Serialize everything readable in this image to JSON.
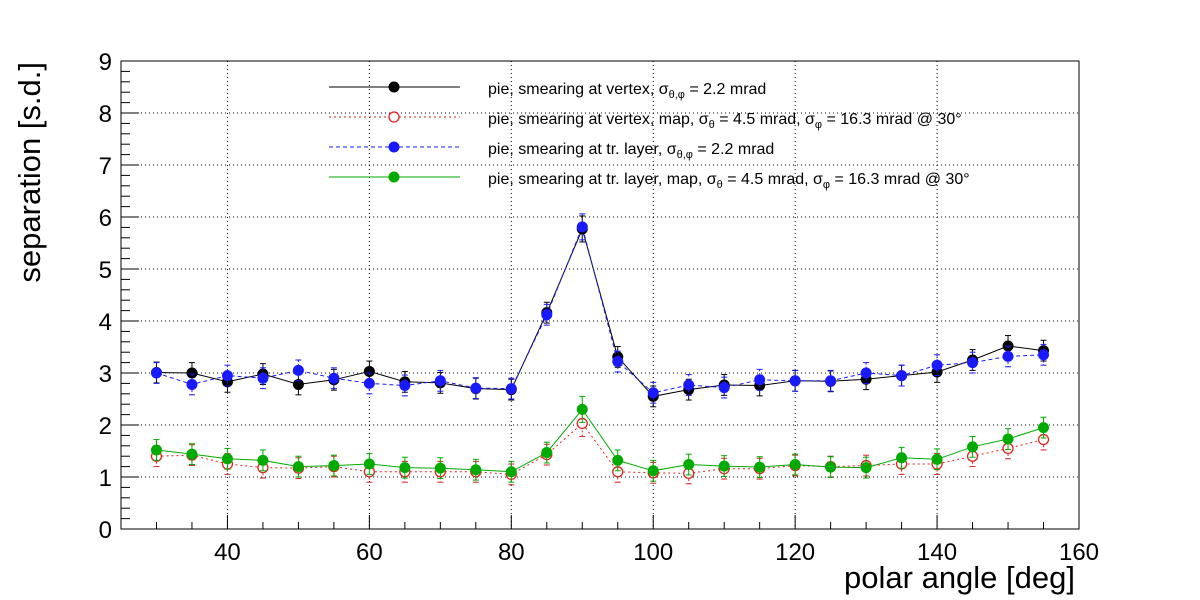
{
  "chart_data": {
    "type": "scatter",
    "xlabel": "polar angle [deg]",
    "ylabel": "separation [s.d.]",
    "xlim": [
      25,
      160
    ],
    "ylim": [
      0,
      9
    ],
    "x_ticks": [
      40,
      60,
      80,
      100,
      120,
      140,
      160
    ],
    "y_ticks": [
      0,
      1,
      2,
      3,
      4,
      5,
      6,
      7,
      8,
      9
    ],
    "grid": true,
    "legend_position": "top",
    "x": [
      30,
      35,
      40,
      45,
      50,
      55,
      60,
      65,
      70,
      75,
      80,
      85,
      90,
      95,
      100,
      105,
      110,
      115,
      120,
      125,
      130,
      135,
      140,
      145,
      150,
      155
    ],
    "series": [
      {
        "name": "pie, smearing at vertex, σ_θ,φ = 2.2 mrad",
        "color": "#000000",
        "line": "solid",
        "marker": "filled",
        "values": [
          3.01,
          3.0,
          2.83,
          2.98,
          2.78,
          2.87,
          3.03,
          2.83,
          2.81,
          2.7,
          2.68,
          4.16,
          5.77,
          3.31,
          2.55,
          2.68,
          2.77,
          2.76,
          2.85,
          2.84,
          2.88,
          2.95,
          3.02,
          3.25,
          3.52,
          3.43
        ],
        "errors": [
          0.2,
          0.2,
          0.2,
          0.2,
          0.2,
          0.2,
          0.2,
          0.2,
          0.2,
          0.2,
          0.2,
          0.2,
          0.25,
          0.2,
          0.2,
          0.2,
          0.2,
          0.2,
          0.2,
          0.2,
          0.2,
          0.2,
          0.2,
          0.2,
          0.2,
          0.2
        ]
      },
      {
        "name": "pie, smearing at vertex, map, σ_θ = 4.5 mrad,  σ_φ = 16.3 mrad @ 30°",
        "color": "#dd2222",
        "line": "dotted",
        "marker": "open",
        "values": [
          1.4,
          1.42,
          1.25,
          1.18,
          1.17,
          1.2,
          1.1,
          1.1,
          1.1,
          1.1,
          1.05,
          1.43,
          2.03,
          1.1,
          1.08,
          1.07,
          1.16,
          1.16,
          1.22,
          1.2,
          1.22,
          1.25,
          1.25,
          1.4,
          1.55,
          1.72
        ],
        "errors": [
          0.2,
          0.2,
          0.2,
          0.2,
          0.2,
          0.2,
          0.2,
          0.2,
          0.2,
          0.2,
          0.2,
          0.2,
          0.25,
          0.2,
          0.2,
          0.2,
          0.2,
          0.2,
          0.2,
          0.2,
          0.2,
          0.2,
          0.2,
          0.2,
          0.2,
          0.2
        ]
      },
      {
        "name": "pie, smearing at tr. layer, σ_θ,φ = 2.2 mrad",
        "color": "#1a1aff",
        "line": "dashed",
        "marker": "filled",
        "values": [
          3.0,
          2.78,
          2.95,
          2.9,
          3.05,
          2.9,
          2.8,
          2.76,
          2.85,
          2.71,
          2.7,
          4.12,
          5.81,
          3.22,
          2.62,
          2.77,
          2.72,
          2.87,
          2.85,
          2.85,
          3.0,
          2.95,
          3.15,
          3.2,
          3.32,
          3.35
        ],
        "errors": [
          0.2,
          0.2,
          0.2,
          0.2,
          0.2,
          0.2,
          0.2,
          0.2,
          0.2,
          0.2,
          0.2,
          0.2,
          0.25,
          0.2,
          0.2,
          0.2,
          0.2,
          0.2,
          0.2,
          0.2,
          0.2,
          0.2,
          0.2,
          0.2,
          0.2,
          0.2
        ]
      },
      {
        "name": "pie, smearing at tr. layer, map, σ_θ = 4.5 mrad,  σ_φ = 16.3 mrad @ 30°",
        "color": "#00aa00",
        "line": "solid",
        "marker": "filled",
        "values": [
          1.52,
          1.44,
          1.35,
          1.32,
          1.2,
          1.22,
          1.25,
          1.18,
          1.17,
          1.14,
          1.1,
          1.47,
          2.3,
          1.32,
          1.12,
          1.24,
          1.21,
          1.19,
          1.24,
          1.19,
          1.18,
          1.37,
          1.34,
          1.58,
          1.73,
          1.95
        ],
        "errors": [
          0.2,
          0.2,
          0.2,
          0.2,
          0.2,
          0.2,
          0.2,
          0.2,
          0.2,
          0.2,
          0.2,
          0.2,
          0.25,
          0.2,
          0.2,
          0.2,
          0.2,
          0.2,
          0.2,
          0.2,
          0.2,
          0.2,
          0.2,
          0.2,
          0.2,
          0.2
        ]
      }
    ]
  },
  "legend_entries": [
    {
      "prefix": "pie, smearing at vertex, σ",
      "sub1": "θ,φ",
      "mid": " = 2.2 mrad",
      "sub2": "",
      "tail": ""
    },
    {
      "prefix": "pie, smearing at vertex, map, σ",
      "sub1": "θ",
      "mid": " = 4.5 mrad,  σ",
      "sub2": "φ",
      "tail": " = 16.3 mrad @ 30°"
    },
    {
      "prefix": "pie, smearing at tr. layer, σ",
      "sub1": "θ,φ",
      "mid": " = 2.2 mrad",
      "sub2": "",
      "tail": ""
    },
    {
      "prefix": "pie, smearing at tr. layer, map, σ",
      "sub1": "θ",
      "mid": " = 4.5 mrad,  σ",
      "sub2": "φ",
      "tail": " = 16.3 mrad @ 30°"
    }
  ]
}
